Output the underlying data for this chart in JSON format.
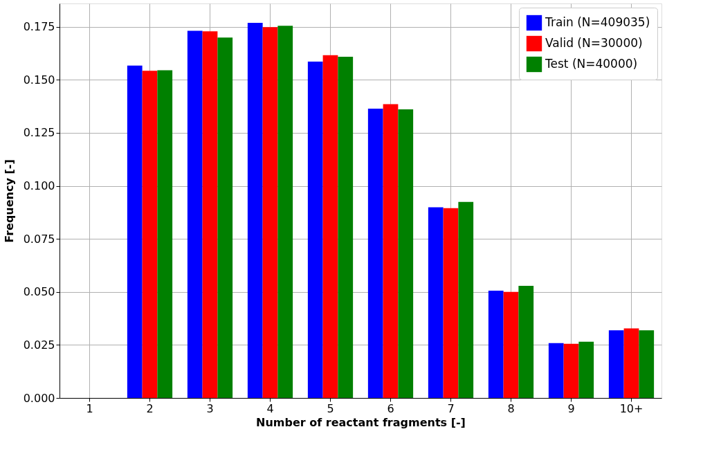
{
  "chart_data": {
    "type": "bar",
    "xlabel": "Number of reactant fragments [-]",
    "ylabel": "Frequency [-]",
    "categories": [
      "1",
      "2",
      "3",
      "4",
      "5",
      "6",
      "7",
      "8",
      "9",
      "10+"
    ],
    "series": [
      {
        "name": "Train (N=409035)",
        "color": "#0000ff",
        "values": [
          0,
          0.1567,
          0.1731,
          0.1769,
          0.1586,
          0.1364,
          0.0899,
          0.0506,
          0.0259,
          0.0319
        ]
      },
      {
        "name": "Valid (N=30000)",
        "color": "#ff0000",
        "values": [
          0,
          0.1543,
          0.1729,
          0.1748,
          0.1616,
          0.1385,
          0.0895,
          0.05,
          0.0255,
          0.0328
        ]
      },
      {
        "name": "Test (N=40000)",
        "color": "#008000",
        "values": [
          0,
          0.1545,
          0.1699,
          0.1755,
          0.1609,
          0.1361,
          0.0924,
          0.0529,
          0.0265,
          0.0319
        ]
      }
    ],
    "ylim": [
      0,
      0.186
    ],
    "yticks": [
      {
        "value": 0,
        "label": "0.000"
      },
      {
        "value": 0.025,
        "label": "0.025"
      },
      {
        "value": 0.05,
        "label": "0.050"
      },
      {
        "value": 0.075,
        "label": "0.075"
      },
      {
        "value": 0.1,
        "label": "0.100"
      },
      {
        "value": 0.125,
        "label": "0.125"
      },
      {
        "value": 0.15,
        "label": "0.150"
      },
      {
        "value": 0.175,
        "label": "0.175"
      }
    ],
    "grid": true,
    "legend": "top right"
  }
}
